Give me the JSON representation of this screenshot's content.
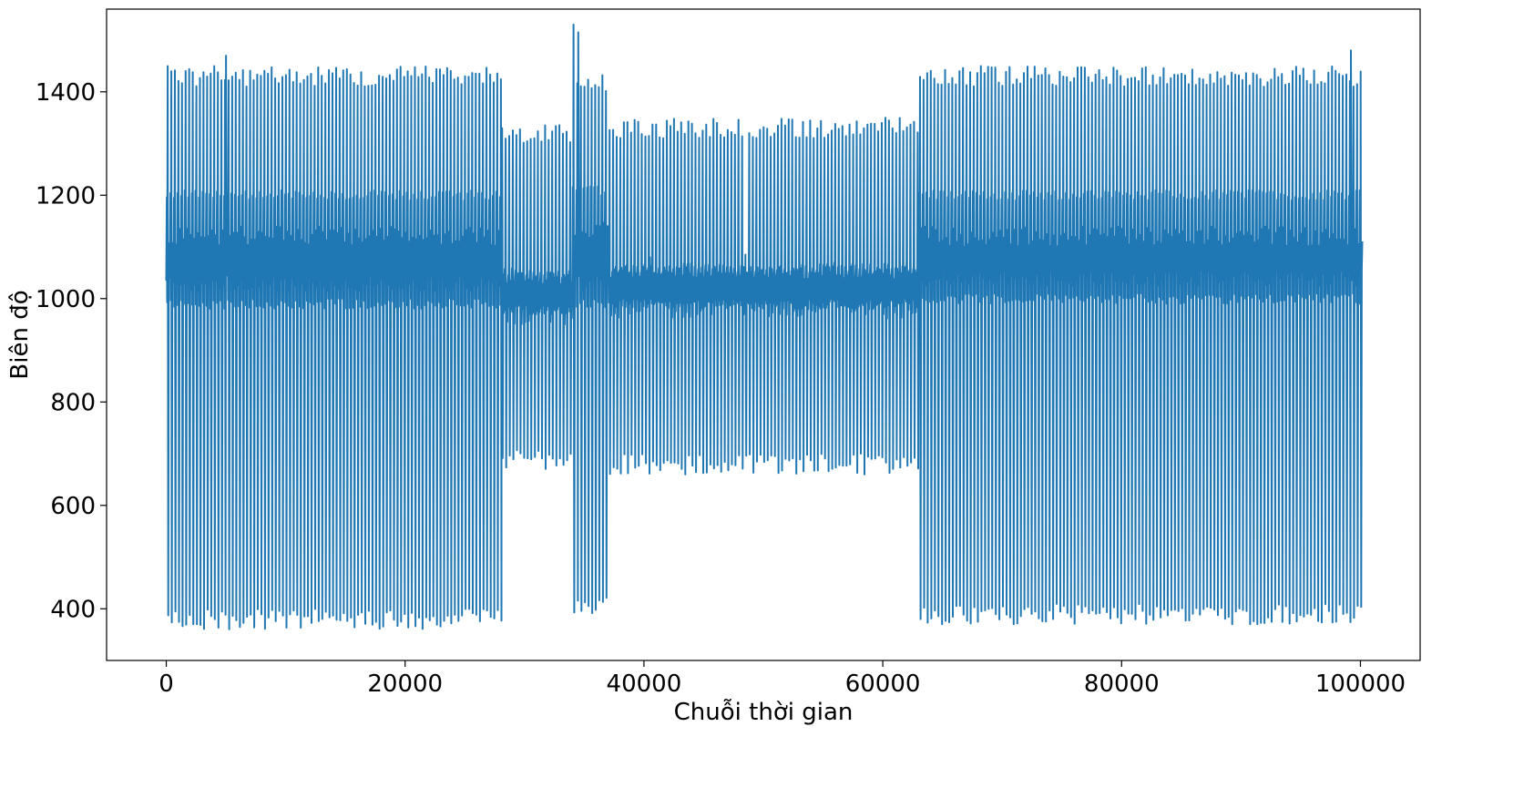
{
  "chart_data": {
    "type": "line",
    "title": "",
    "xlabel": "Chuỗi thời gian",
    "ylabel": "Biên độ",
    "xlim": [
      -5000,
      105000
    ],
    "ylim": [
      300,
      1560
    ],
    "xticks": [
      0,
      20000,
      40000,
      60000,
      80000,
      100000
    ],
    "xtick_labels": [
      "0",
      "20000",
      "40000",
      "60000",
      "80000",
      "100000"
    ],
    "yticks": [
      400,
      600,
      800,
      1000,
      1200,
      1400
    ],
    "ytick_labels": [
      "400",
      "600",
      "800",
      "1000",
      "1200",
      "1400"
    ],
    "grid": false,
    "legend": "none",
    "series": [
      {
        "color": "#1f77b4",
        "x_start": 0,
        "x_end": 100000,
        "segments": [
          {
            "x": [
              0,
              28000
            ],
            "high_peak": 1430,
            "high_mid": 1200,
            "low": 380,
            "baseline": 1030
          },
          {
            "x": [
              28000,
              34000
            ],
            "high_peak": 1320,
            "high_mid": 1050,
            "low": 690,
            "baseline": 1020
          },
          {
            "x": [
              34000,
              37000
            ],
            "high_peak": 1420,
            "high_mid": 1210,
            "low": 410,
            "baseline": 1030
          },
          {
            "x": [
              37000,
              63000
            ],
            "high_peak": 1330,
            "high_mid": 1060,
            "low": 680,
            "baseline": 1030
          },
          {
            "x": [
              63000,
              100000
            ],
            "high_peak": 1430,
            "high_mid": 1200,
            "low": 390,
            "baseline": 1040
          }
        ],
        "notable_points": [
          {
            "x": 34100,
            "y": 1530
          },
          {
            "x": 34500,
            "y": 1515
          },
          {
            "x": 99200,
            "y": 1480
          },
          {
            "x": 5000,
            "y": 1470
          },
          {
            "x": 40500,
            "y": 1080
          },
          {
            "x": 48500,
            "y": 1085
          }
        ]
      }
    ]
  }
}
